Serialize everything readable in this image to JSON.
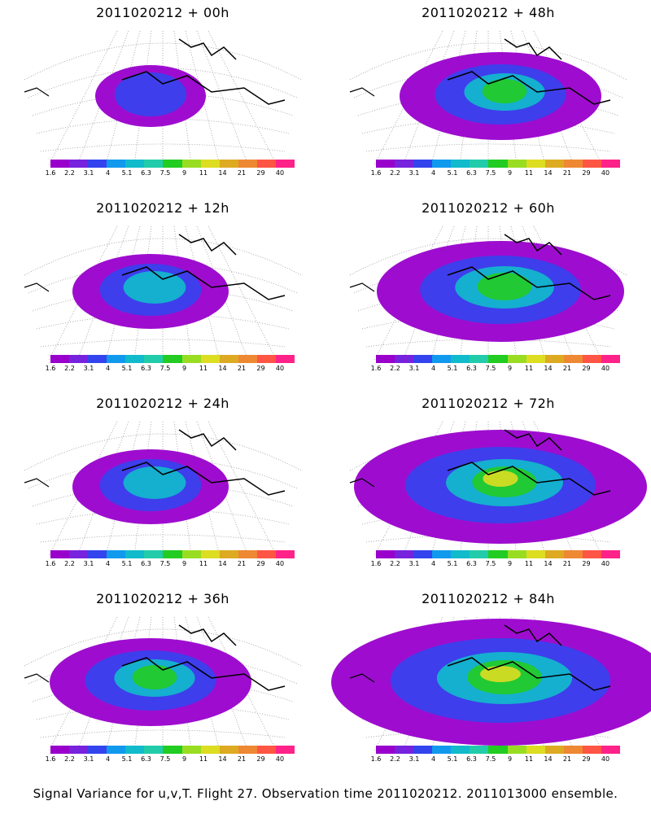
{
  "panels": [
    {
      "title": "2011020212 + 00h",
      "level": 1
    },
    {
      "title": "2011020212 + 48h",
      "level": 3
    },
    {
      "title": "2011020212 + 12h",
      "level": 2
    },
    {
      "title": "2011020212 + 60h",
      "level": 4
    },
    {
      "title": "2011020212 + 24h",
      "level": 2
    },
    {
      "title": "2011020212 + 72h",
      "level": 5
    },
    {
      "title": "2011020212 + 36h",
      "level": 3
    },
    {
      "title": "2011020212 + 84h",
      "level": 6
    }
  ],
  "colorbar": {
    "colors": [
      "#9900cc",
      "#7722dd",
      "#3344ee",
      "#1199ee",
      "#11bbcc",
      "#22ccaa",
      "#22cc22",
      "#99dd22",
      "#dddd22",
      "#ddaa22",
      "#ee8833",
      "#ff5544",
      "#ff2288"
    ],
    "ticks": [
      "1.6",
      "2.2",
      "3.1",
      "4",
      "5.1",
      "6.3",
      "7.5",
      "9",
      "11",
      "14",
      "21",
      "29",
      "40"
    ]
  },
  "footer": "Signal Variance for u,v,T. Flight 27. Observation time 2011020212. 2011013000 ensemble."
}
